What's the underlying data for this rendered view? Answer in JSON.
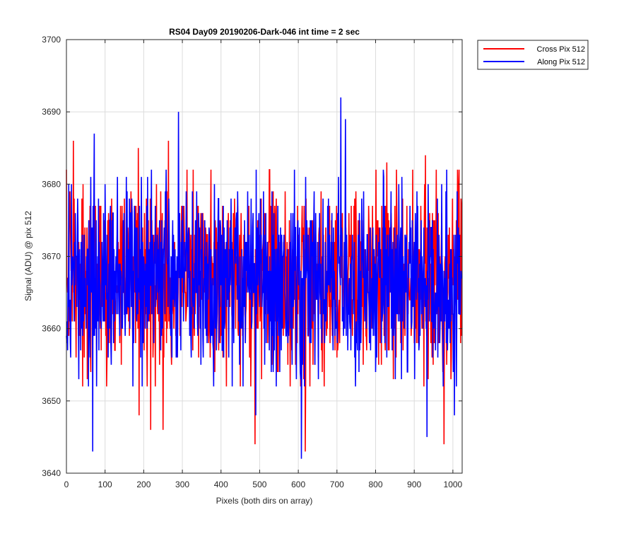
{
  "chart_data": {
    "type": "line",
    "title": "RS04 Day09 20190206-Dark-046 int time = 2 sec",
    "xlabel": "Pixels (both dirs on array)",
    "ylabel": "Signal (ADU) @ pix 512",
    "xlim": [
      0,
      1024
    ],
    "ylim": [
      3640,
      3700
    ],
    "xticks": [
      0,
      100,
      200,
      300,
      400,
      500,
      600,
      700,
      800,
      900,
      1000
    ],
    "yticks": [
      3640,
      3650,
      3660,
      3670,
      3680,
      3690,
      3700
    ],
    "grid": true,
    "legend_position": "outside-top-right",
    "series": [
      {
        "name": "Cross Pix 512",
        "color": "#ff0000",
        "mean": 3667,
        "spread": 6.5,
        "n_points": 1024,
        "peaks": [
          {
            "x": 18,
            "y": 3686
          },
          {
            "x": 186,
            "y": 3685
          },
          {
            "x": 264,
            "y": 3686
          },
          {
            "x": 829,
            "y": 3683
          },
          {
            "x": 929,
            "y": 3684
          },
          {
            "x": 188,
            "y": 3648
          },
          {
            "x": 218,
            "y": 3646
          },
          {
            "x": 250,
            "y": 3646
          },
          {
            "x": 488,
            "y": 3644
          },
          {
            "x": 618,
            "y": 3643
          },
          {
            "x": 977,
            "y": 3644
          }
        ]
      },
      {
        "name": "Along Pix 512",
        "color": "#0000ff",
        "mean": 3667,
        "spread": 6.5,
        "n_points": 1024,
        "peaks": [
          {
            "x": 72,
            "y": 3687
          },
          {
            "x": 290,
            "y": 3690
          },
          {
            "x": 710,
            "y": 3692
          },
          {
            "x": 722,
            "y": 3689
          },
          {
            "x": 68,
            "y": 3643
          },
          {
            "x": 490,
            "y": 3648
          },
          {
            "x": 608,
            "y": 3642
          },
          {
            "x": 933,
            "y": 3645
          },
          {
            "x": 1004,
            "y": 3648
          }
        ]
      }
    ]
  }
}
